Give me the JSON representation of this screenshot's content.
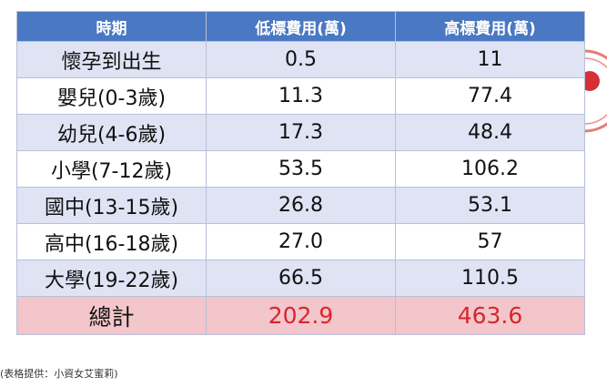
{
  "table": {
    "header": [
      "時期",
      "低標費用(萬)",
      "高標費用(萬)"
    ],
    "rows": [
      [
        "懷孕到出生",
        "0.5",
        "11"
      ],
      [
        "嬰兒(0-3歲)",
        "11.3",
        "77.4"
      ],
      [
        "幼兒(4-6歲)",
        "17.3",
        "48.4"
      ],
      [
        "小學(7-12歲)",
        "53.5",
        "106.2"
      ],
      [
        "國中(13-15歲)",
        "26.8",
        "53.1"
      ],
      [
        "高中(16-18歲)",
        "27.0",
        "57"
      ],
      [
        "大學(19-22歲)",
        "66.5",
        "110.5"
      ]
    ],
    "total": [
      "總計",
      "202.9",
      "463.6"
    ]
  },
  "caption": "(表格提供：小資女艾蜜莉)"
}
